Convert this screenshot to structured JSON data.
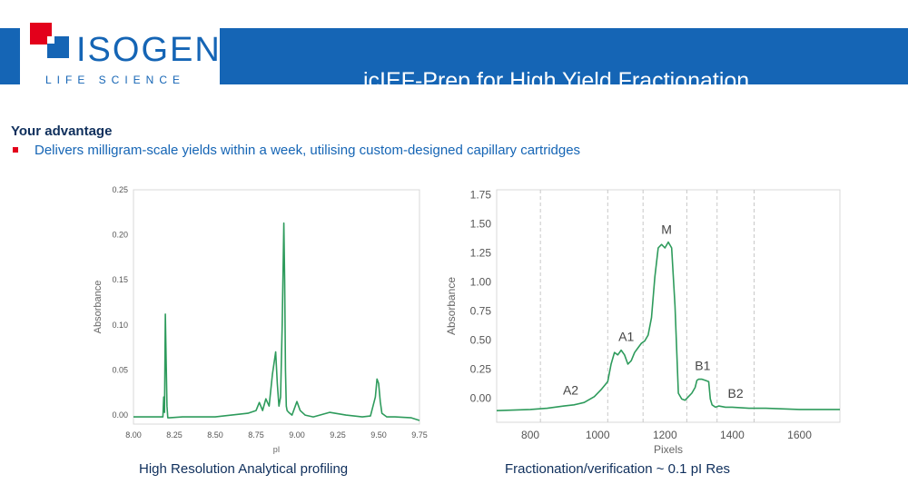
{
  "header": {
    "logo_name": "ISOGEN",
    "logo_sub": "LIFE SCIENCE",
    "title": "icIEF-Prep for High Yield Fractionation",
    "colors": {
      "banner": "#1565b5",
      "logo_red": "#e3001b",
      "trace": "#2e9b5c"
    }
  },
  "advantage": {
    "heading": "Your advantage",
    "bullet": "Delivers milligram-scale yields within a week, utilising custom-designed capillary cartridges"
  },
  "chart_data": [
    {
      "type": "line",
      "caption": "High Resolution Analytical profiling",
      "xlabel": "pI",
      "ylabel": "Absorbance",
      "xlim": [
        8.0,
        9.75
      ],
      "ylim": [
        -0.01,
        0.25
      ],
      "xticks": [
        "8.00",
        "8.25",
        "8.50",
        "8.75",
        "9.00",
        "9.25",
        "9.50",
        "9.75"
      ],
      "yticks": [
        "0.00",
        "0.05",
        "0.10",
        "0.15",
        "0.20",
        "0.25"
      ],
      "series": [
        {
          "x": [
            8.0,
            8.1,
            8.18,
            8.185,
            8.19,
            8.195,
            8.2,
            8.205,
            8.21,
            8.22,
            8.3,
            8.4,
            8.5,
            8.6,
            8.7,
            8.75,
            8.77,
            8.79,
            8.81,
            8.83,
            8.85,
            8.87,
            8.88,
            8.89,
            8.9,
            8.91,
            8.92,
            8.925,
            8.93,
            8.935,
            8.94,
            8.95,
            8.97,
            8.99,
            9.0,
            9.02,
            9.05,
            9.1,
            9.2,
            9.3,
            9.4,
            9.45,
            9.48,
            9.49,
            9.5,
            9.51,
            9.52,
            9.55,
            9.6,
            9.7,
            9.75
          ],
          "y": [
            -0.002,
            -0.002,
            -0.002,
            0.02,
            0.003,
            0.112,
            0.06,
            0.01,
            -0.003,
            -0.003,
            -0.002,
            -0.002,
            -0.002,
            0.0,
            0.002,
            0.005,
            0.014,
            0.005,
            0.018,
            0.01,
            0.045,
            0.07,
            0.035,
            0.01,
            0.02,
            0.1,
            0.213,
            0.15,
            0.05,
            0.01,
            0.005,
            0.003,
            0.0,
            0.01,
            0.015,
            0.005,
            0.0,
            -0.002,
            0.003,
            0.0,
            -0.002,
            -0.001,
            0.02,
            0.04,
            0.035,
            0.015,
            0.002,
            -0.002,
            -0.002,
            -0.003,
            -0.006
          ]
        }
      ]
    },
    {
      "type": "line",
      "caption": "Fractionation/verification ~ 0.1 pI Res",
      "xlabel": "Pixels",
      "ylabel": "Absorbance",
      "xlim": [
        700,
        1720
      ],
      "ylim": [
        -0.2,
        1.8
      ],
      "xticks": [
        "800",
        "1000",
        "1200",
        "1400",
        "1600"
      ],
      "yticks": [
        "0.00",
        "0.25",
        "0.50",
        "0.75",
        "1.00",
        "1.25",
        "1.50",
        "1.75"
      ],
      "vlines": [
        830,
        1030,
        1135,
        1265,
        1355,
        1465
      ],
      "annotations": [
        {
          "text": "A2",
          "x": 920,
          "y": 0.04
        },
        {
          "text": "A1",
          "x": 1085,
          "y": 0.5
        },
        {
          "text": "M",
          "x": 1205,
          "y": 1.42
        },
        {
          "text": "B1",
          "x": 1312,
          "y": 0.25
        },
        {
          "text": "B2",
          "x": 1410,
          "y": 0.01
        }
      ],
      "series": [
        {
          "x": [
            700,
            800,
            850,
            900,
            930,
            960,
            990,
            1010,
            1030,
            1040,
            1050,
            1060,
            1070,
            1080,
            1090,
            1100,
            1110,
            1120,
            1130,
            1140,
            1150,
            1160,
            1170,
            1180,
            1190,
            1200,
            1210,
            1220,
            1230,
            1240,
            1250,
            1260,
            1270,
            1280,
            1290,
            1295,
            1300,
            1310,
            1320,
            1330,
            1335,
            1340,
            1350,
            1360,
            1380,
            1400,
            1450,
            1500,
            1600,
            1720
          ],
          "y": [
            -0.1,
            -0.09,
            -0.08,
            -0.06,
            -0.05,
            -0.03,
            0.02,
            0.08,
            0.15,
            0.3,
            0.4,
            0.38,
            0.42,
            0.38,
            0.3,
            0.33,
            0.4,
            0.44,
            0.48,
            0.5,
            0.55,
            0.7,
            1.05,
            1.3,
            1.33,
            1.3,
            1.35,
            1.3,
            0.8,
            0.05,
            0.0,
            -0.01,
            0.02,
            0.05,
            0.1,
            0.16,
            0.17,
            0.17,
            0.16,
            0.15,
            0.0,
            -0.05,
            -0.07,
            -0.06,
            -0.07,
            -0.07,
            -0.08,
            -0.08,
            -0.09,
            -0.09
          ]
        }
      ]
    }
  ]
}
